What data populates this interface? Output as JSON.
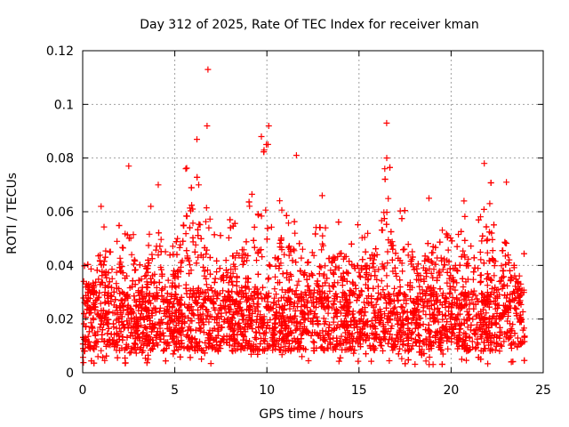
{
  "chart_data": {
    "type": "scatter",
    "title": "Day 312 of 2025, Rate Of TEC Index for receiver kman",
    "xlabel": "GPS time / hours",
    "ylabel": "ROTI / TECUs",
    "xlim": [
      0,
      25
    ],
    "ylim": [
      0,
      0.12
    ],
    "x_ticks": [
      0,
      5,
      10,
      15,
      20,
      25
    ],
    "y_ticks": [
      0,
      0.02,
      0.04,
      0.06,
      0.08,
      0.1,
      0.12
    ],
    "x_tick_labels": [
      "0",
      "5",
      "10",
      "15",
      "20",
      "25"
    ],
    "y_tick_labels": [
      "0",
      "0.02",
      "0.04",
      "0.06",
      "0.08",
      "0.1",
      "0.12"
    ],
    "grid": true,
    "marker": "plus",
    "color": "#ff0000",
    "x_range_of_samples": [
      0,
      24
    ],
    "notable_points": [
      {
        "x": 6.8,
        "y": 0.113
      },
      {
        "x": 6.75,
        "y": 0.092
      },
      {
        "x": 10.1,
        "y": 0.092
      },
      {
        "x": 16.5,
        "y": 0.093
      },
      {
        "x": 9.7,
        "y": 0.088
      },
      {
        "x": 6.2,
        "y": 0.087
      },
      {
        "x": 11.6,
        "y": 0.081
      },
      {
        "x": 21.8,
        "y": 0.078
      },
      {
        "x": 2.5,
        "y": 0.077
      },
      {
        "x": 5.6,
        "y": 0.076
      },
      {
        "x": 16.4,
        "y": 0.076
      },
      {
        "x": 23.0,
        "y": 0.071
      },
      {
        "x": 4.1,
        "y": 0.07
      },
      {
        "x": 6.3,
        "y": 0.07
      },
      {
        "x": 13.0,
        "y": 0.066
      },
      {
        "x": 18.8,
        "y": 0.065
      },
      {
        "x": 20.7,
        "y": 0.064
      },
      {
        "x": 22.1,
        "y": 0.063
      },
      {
        "x": 1.0,
        "y": 0.062
      },
      {
        "x": 3.7,
        "y": 0.062
      }
    ],
    "peak_envelope": [
      {
        "x": 0.0,
        "y": 0.05
      },
      {
        "x": 0.5,
        "y": 0.04
      },
      {
        "x": 1.0,
        "y": 0.062
      },
      {
        "x": 1.5,
        "y": 0.045
      },
      {
        "x": 2.0,
        "y": 0.057
      },
      {
        "x": 2.5,
        "y": 0.077
      },
      {
        "x": 3.0,
        "y": 0.048
      },
      {
        "x": 3.5,
        "y": 0.055
      },
      {
        "x": 4.0,
        "y": 0.07
      },
      {
        "x": 4.5,
        "y": 0.048
      },
      {
        "x": 5.0,
        "y": 0.052
      },
      {
        "x": 5.5,
        "y": 0.076
      },
      {
        "x": 6.0,
        "y": 0.087
      },
      {
        "x": 6.5,
        "y": 0.07
      },
      {
        "x": 7.0,
        "y": 0.055
      },
      {
        "x": 7.5,
        "y": 0.052
      },
      {
        "x": 8.0,
        "y": 0.058
      },
      {
        "x": 8.5,
        "y": 0.06
      },
      {
        "x": 9.0,
        "y": 0.068
      },
      {
        "x": 9.5,
        "y": 0.075
      },
      {
        "x": 10.0,
        "y": 0.092
      },
      {
        "x": 10.5,
        "y": 0.07
      },
      {
        "x": 11.0,
        "y": 0.065
      },
      {
        "x": 11.5,
        "y": 0.063
      },
      {
        "x": 12.0,
        "y": 0.058
      },
      {
        "x": 12.5,
        "y": 0.062
      },
      {
        "x": 13.0,
        "y": 0.066
      },
      {
        "x": 13.5,
        "y": 0.058
      },
      {
        "x": 14.0,
        "y": 0.062
      },
      {
        "x": 14.5,
        "y": 0.055
      },
      {
        "x": 15.0,
        "y": 0.058
      },
      {
        "x": 15.5,
        "y": 0.055
      },
      {
        "x": 16.0,
        "y": 0.065
      },
      {
        "x": 16.5,
        "y": 0.093
      },
      {
        "x": 17.0,
        "y": 0.06
      },
      {
        "x": 17.5,
        "y": 0.062
      },
      {
        "x": 18.0,
        "y": 0.06
      },
      {
        "x": 18.5,
        "y": 0.058
      },
      {
        "x": 19.0,
        "y": 0.065
      },
      {
        "x": 19.5,
        "y": 0.058
      },
      {
        "x": 20.0,
        "y": 0.055
      },
      {
        "x": 20.5,
        "y": 0.064
      },
      {
        "x": 21.0,
        "y": 0.058
      },
      {
        "x": 21.5,
        "y": 0.062
      },
      {
        "x": 22.0,
        "y": 0.078
      },
      {
        "x": 22.5,
        "y": 0.06
      },
      {
        "x": 23.0,
        "y": 0.071
      },
      {
        "x": 23.5,
        "y": 0.05
      },
      {
        "x": 24.0,
        "y": 0.045
      }
    ],
    "baseline": {
      "typical_min": 0.008,
      "typical_max": 0.03,
      "absolute_min": 0.003
    }
  }
}
